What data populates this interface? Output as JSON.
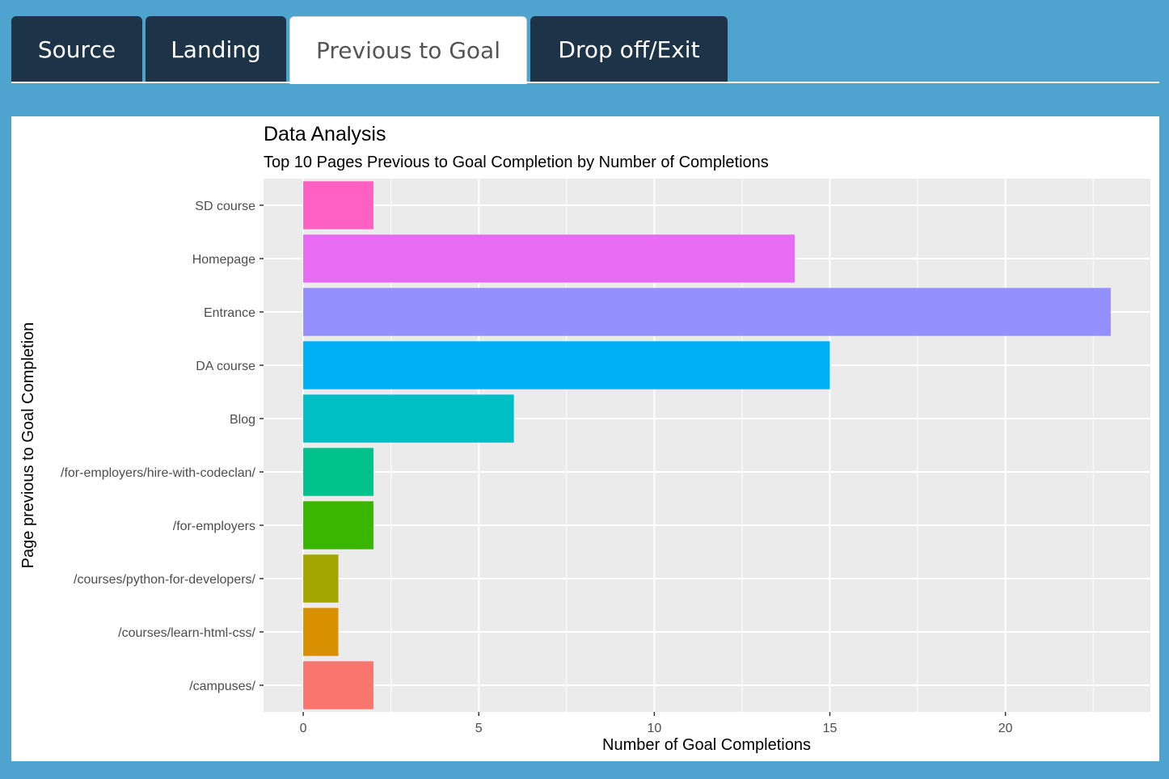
{
  "tabs": [
    {
      "label": "Source",
      "active": false
    },
    {
      "label": "Landing",
      "active": false
    },
    {
      "label": "Previous to Goal",
      "active": true
    },
    {
      "label": "Drop off/Exit",
      "active": false
    }
  ],
  "chart_data": {
    "type": "bar",
    "orientation": "horizontal",
    "title": "Data Analysis",
    "subtitle": "Top 10 Pages Previous to Goal Completion by Number of Completions",
    "xlabel": "Number of Goal Completions",
    "ylabel": "Page previous to Goal Completion",
    "categories": [
      "SD course",
      "Homepage",
      "Entrance",
      "DA course",
      "Blog",
      "/for-employers/hire-with-codeclan/",
      "/for-employers",
      "/courses/python-for-developers/",
      "/courses/learn-html-css/",
      "/campuses/"
    ],
    "values": [
      2,
      14,
      23,
      15,
      6,
      2,
      2,
      1,
      1,
      2
    ],
    "colors": [
      "#ff61c3",
      "#e76bf3",
      "#9590ff",
      "#00b0f6",
      "#00bfc4",
      "#00c08b",
      "#39b600",
      "#a3a500",
      "#d89000",
      "#f8766d"
    ],
    "xlim": [
      -1.13,
      24.13
    ],
    "xticks": [
      0,
      5,
      10,
      15,
      20
    ],
    "grid": true,
    "legend": "none",
    "panel_background": "#ebebeb"
  }
}
